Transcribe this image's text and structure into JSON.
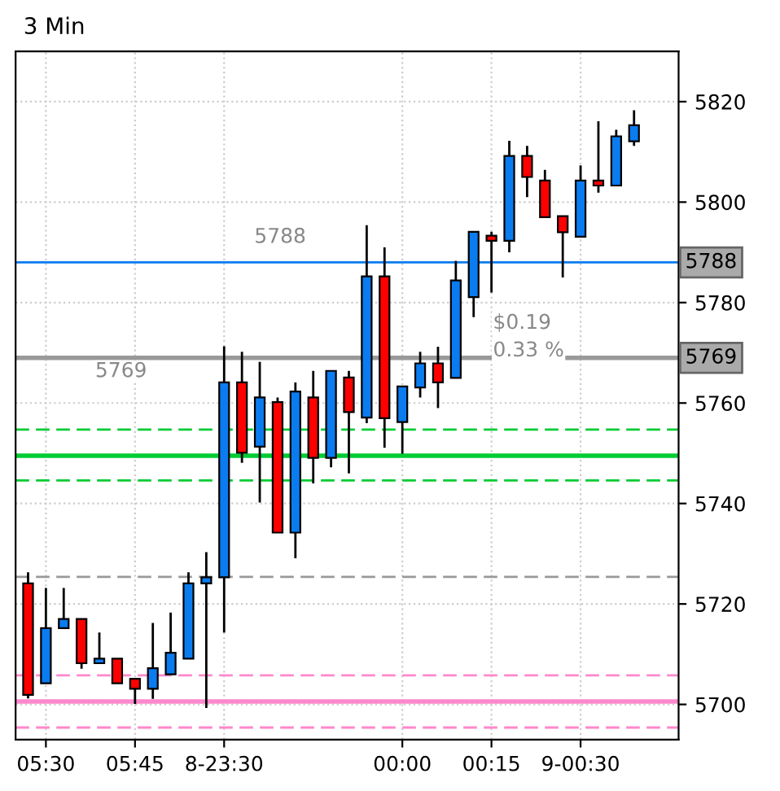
{
  "chart_data": {
    "type": "candlestick",
    "title": "3 Min",
    "categories": [
      null,
      "05:30",
      null,
      null,
      null,
      null,
      "05:45",
      null,
      null,
      null,
      null,
      "8-23:30",
      null,
      null,
      null,
      null,
      null,
      null,
      null,
      null,
      null,
      "00:00",
      null,
      null,
      null,
      null,
      "00:15",
      null,
      null,
      null,
      null,
      "9-00:30",
      null,
      null,
      null
    ],
    "ohlc": [
      [
        5724.1,
        5726.3,
        5701.2,
        5701.9
      ],
      [
        5704.2,
        5723.2,
        5704.2,
        5715.2
      ],
      [
        5715.2,
        5723.2,
        5715.2,
        5717.0
      ],
      [
        5717.0,
        5717.0,
        5707.1,
        5708.2
      ],
      [
        5708.2,
        5714.3,
        5708.2,
        5709.1
      ],
      [
        5709.1,
        5709.1,
        5704.2,
        5704.2
      ],
      [
        5705.1,
        5705.1,
        5700.1,
        5703.1
      ],
      [
        5703.1,
        5716.2,
        5701.1,
        5707.2
      ],
      [
        5706.0,
        5718.3,
        5706.0,
        5710.3
      ],
      [
        5709.1,
        5726.3,
        5709.1,
        5724.1
      ],
      [
        5724.1,
        5730.3,
        5699.3,
        5725.3
      ],
      [
        5725.3,
        5771.3,
        5714.3,
        5764.1
      ],
      [
        5764.1,
        5770.2,
        5748.1,
        5750.1
      ],
      [
        5751.3,
        5768.2,
        5740.2,
        5761.1
      ],
      [
        5760.2,
        5761.1,
        5734.2,
        5734.2
      ],
      [
        5734.2,
        5764.1,
        5729.1,
        5762.3
      ],
      [
        5761.1,
        5766.4,
        5744.0,
        5749.1
      ],
      [
        5749.1,
        5766.4,
        5747.2,
        5766.4
      ],
      [
        5765.1,
        5766.4,
        5746.0,
        5758.2
      ],
      [
        5757.1,
        5795.4,
        5756.0,
        5785.2
      ],
      [
        5785.2,
        5791.0,
        5751.1,
        5757.0
      ],
      [
        5756.2,
        5763.3,
        5749.9,
        5763.3
      ],
      [
        5763.1,
        5770.2,
        5761.1,
        5767.9
      ],
      [
        5767.9,
        5771.2,
        5759.0,
        5764.1
      ],
      [
        5765.0,
        5788.3,
        5765.0,
        5784.4
      ],
      [
        5781.1,
        5794.1,
        5777.1,
        5794.1
      ],
      [
        5793.3,
        5794.1,
        5782.0,
        5792.3
      ],
      [
        5792.3,
        5812.2,
        5790.0,
        5809.2
      ],
      [
        5809.2,
        5811.2,
        5801.0,
        5805.0
      ],
      [
        5804.3,
        5806.4,
        5797.0,
        5797.0
      ],
      [
        5797.2,
        5797.2,
        5785.0,
        5794.0
      ],
      [
        5793.1,
        5807.3,
        5793.1,
        5804.3
      ],
      [
        5804.3,
        5816.1,
        5801.9,
        5803.3
      ],
      [
        5803.3,
        5814.4,
        5803.3,
        5813.1
      ],
      [
        5812.1,
        5818.3,
        5811.2,
        5815.3
      ]
    ],
    "colors": [
      "#ff0000",
      "#0a7cf0",
      "#0a7cf0",
      "#ff0000",
      "#0a7cf0",
      "#ff0000",
      "#ff0000",
      "#0a7cf0",
      "#0a7cf0",
      "#0a7cf0",
      "#0a7cf0",
      "#0a7cf0",
      "#ff0000",
      "#0a7cf0",
      "#ff0000",
      "#0a7cf0",
      "#ff0000",
      "#0a7cf0",
      "#ff0000",
      "#0a7cf0",
      "#ff0000",
      "#0a7cf0",
      "#0a7cf0",
      "#ff0000",
      "#0a7cf0",
      "#0a7cf0",
      "#ff0000",
      "#0a7cf0",
      "#ff0000",
      "#ff0000",
      "#ff0000",
      "#0a7cf0",
      "#ff0000",
      "#0a7cf0",
      "#0a7cf0"
    ],
    "ylim": [
      5693,
      5830
    ],
    "yticks": [
      5700,
      5720,
      5740,
      5760,
      5780,
      5800,
      5820
    ],
    "grid": true,
    "ref_lines": [
      {
        "axis": "y",
        "value": 5788,
        "label": "5788",
        "color": "#0a7cf0",
        "line_style": "solid"
      },
      {
        "axis": "y",
        "value": 5769,
        "label": "5769",
        "color": "#999999",
        "line_style": "solid"
      },
      {
        "axis": "y",
        "value": 5754.7,
        "color": "#00cc33",
        "line_style": "dashed"
      },
      {
        "axis": "y",
        "value": 5749.5,
        "color": "#00cc33",
        "line_style": "solid"
      },
      {
        "axis": "y",
        "value": 5744.6,
        "color": "#00cc33",
        "line_style": "dashed"
      },
      {
        "axis": "y",
        "value": 5725.4,
        "color": "#999999",
        "line_style": "dashed"
      },
      {
        "axis": "y",
        "value": 5705.8,
        "color": "#ff88cc",
        "line_style": "dashed"
      },
      {
        "axis": "y",
        "value": 5700.6,
        "color": "#ff88cc",
        "line_style": "solid"
      },
      {
        "axis": "y",
        "value": 5695.4,
        "color": "#ff88cc",
        "line_style": "dashed"
      }
    ],
    "annotations": [
      "5788",
      "5769",
      "$0.19",
      "0.33 %"
    ]
  }
}
